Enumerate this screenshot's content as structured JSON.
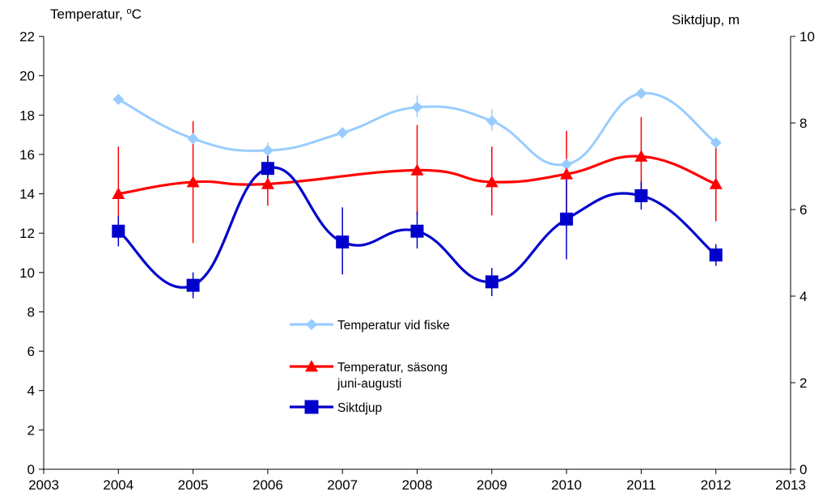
{
  "chart_data": {
    "type": "line",
    "y_left_label_prefix": "Temperatur, ",
    "y_left_label_unit_sup": "o",
    "y_left_label_unit": "C",
    "y_right_label": "Siktdjup,  m",
    "xlim": [
      2003,
      2013
    ],
    "x_ticks": [
      2003,
      2004,
      2005,
      2006,
      2007,
      2008,
      2009,
      2010,
      2011,
      2012,
      2013
    ],
    "ylim_left": [
      0,
      22
    ],
    "y_left_ticks": [
      0,
      2,
      4,
      6,
      8,
      10,
      12,
      14,
      16,
      18,
      20,
      22
    ],
    "ylim_right": [
      0,
      10
    ],
    "y_right_ticks": [
      0,
      2,
      4,
      6,
      8,
      10
    ],
    "grid": false,
    "legend_position": "center",
    "series": [
      {
        "name": "Temperatur vid fiske",
        "axis": "left",
        "color": "#99CCFF",
        "marker": "diamond",
        "x": [
          2004,
          2005,
          2006,
          2007,
          2008,
          2009,
          2010,
          2011,
          2012
        ],
        "y": [
          18.8,
          16.8,
          16.2,
          17.1,
          18.4,
          17.7,
          15.5,
          19.1,
          16.6
        ],
        "err_low": [
          null,
          null,
          15.8,
          null,
          17.9,
          17.2,
          null,
          null,
          null
        ],
        "err_high": [
          null,
          null,
          16.6,
          null,
          19.0,
          18.3,
          null,
          null,
          null
        ]
      },
      {
        "name_lines": [
          "Temperatur, säsong",
          "juni-augusti"
        ],
        "axis": "left",
        "color": "#FF0000",
        "marker": "triangle",
        "x": [
          2004,
          2005,
          2006,
          2008,
          2009,
          2010,
          2011,
          2012
        ],
        "y": [
          14.0,
          14.6,
          14.5,
          15.2,
          14.6,
          15.0,
          15.9,
          14.5
        ],
        "err_low": [
          11.7,
          11.5,
          13.4,
          12.9,
          12.9,
          12.8,
          13.9,
          12.6
        ],
        "err_high": [
          16.4,
          17.7,
          15.6,
          17.5,
          16.4,
          17.2,
          17.9,
          16.4
        ]
      },
      {
        "name": "Siktdjup",
        "axis": "right",
        "color": "#0000CC",
        "marker": "square",
        "x": [
          2004,
          2005,
          2006,
          2007,
          2008,
          2009,
          2010,
          2011,
          2012
        ],
        "y": [
          5.5,
          4.25,
          6.95,
          5.25,
          5.5,
          4.33,
          5.78,
          6.32,
          4.95
        ],
        "err_low": [
          5.15,
          3.95,
          6.6,
          4.5,
          5.1,
          4.0,
          4.85,
          6.0,
          4.7
        ],
        "err_high": [
          5.85,
          4.55,
          7.3,
          6.05,
          5.95,
          4.65,
          6.7,
          6.65,
          5.2
        ]
      }
    ]
  }
}
